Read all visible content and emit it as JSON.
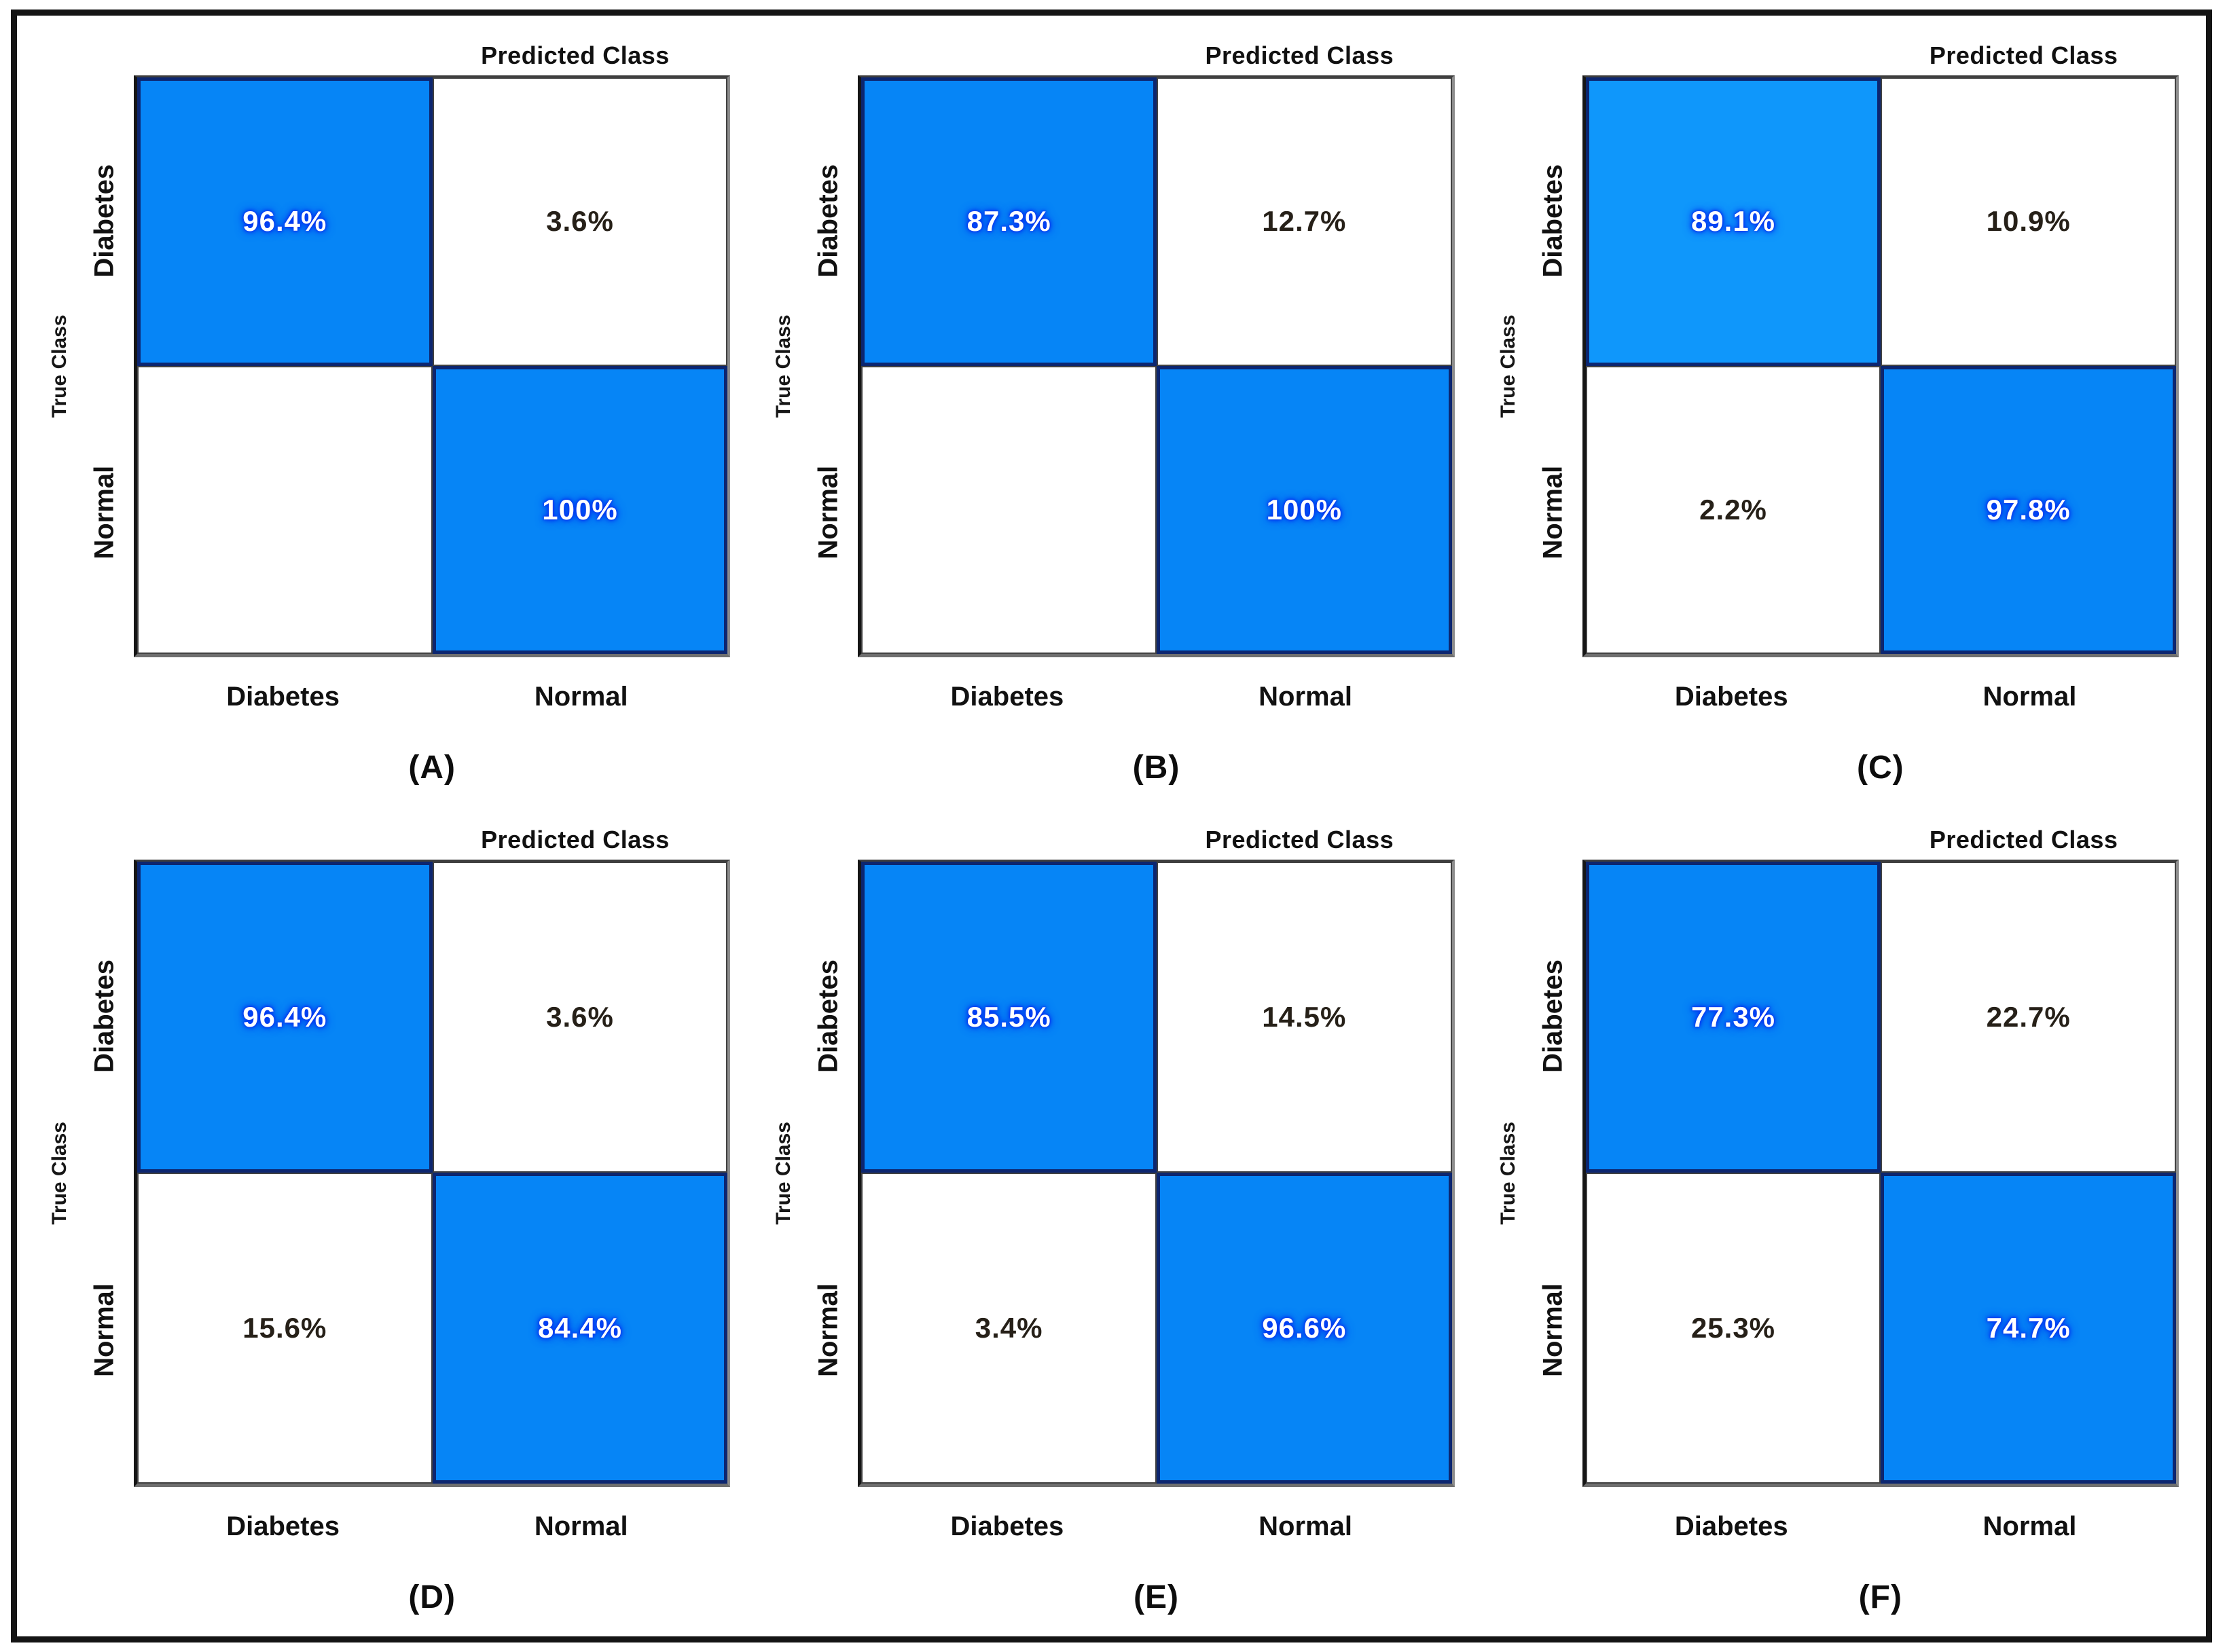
{
  "figure": {
    "x_axis_title": "Predicted Class",
    "y_axis_title": "True Class",
    "row_labels": [
      "Diabetes",
      "Normal"
    ],
    "col_labels": [
      "Diabetes",
      "Normal"
    ],
    "colors": {
      "filled_blue": "#0685f6",
      "filled_blue_light": "#0f97fb",
      "filled_cell_border": "#0c2670",
      "value_glow": "#0033f0",
      "value_on_blue": "#ffffff",
      "off_diagonal_text": "#262018",
      "frame_border": "#141414"
    },
    "panels": [
      {
        "caption": "(A)",
        "cells": [
          {
            "text": "96.4%",
            "state": "filled"
          },
          {
            "text": "3.6%",
            "state": "empty"
          },
          {
            "text": "",
            "state": "empty"
          },
          {
            "text": "100%",
            "state": "filled"
          }
        ]
      },
      {
        "caption": "(B)",
        "cells": [
          {
            "text": "87.3%",
            "state": "filled"
          },
          {
            "text": "12.7%",
            "state": "empty"
          },
          {
            "text": "",
            "state": "empty"
          },
          {
            "text": "100%",
            "state": "filled"
          }
        ]
      },
      {
        "caption": "(C)",
        "cells": [
          {
            "text": "89.1%",
            "state": "filled2"
          },
          {
            "text": "10.9%",
            "state": "empty"
          },
          {
            "text": "2.2%",
            "state": "empty"
          },
          {
            "text": "97.8%",
            "state": "filled"
          }
        ]
      },
      {
        "caption": "(D)",
        "cells": [
          {
            "text": "96.4%",
            "state": "filled"
          },
          {
            "text": "3.6%",
            "state": "empty"
          },
          {
            "text": "15.6%",
            "state": "empty"
          },
          {
            "text": "84.4%",
            "state": "filled"
          }
        ]
      },
      {
        "caption": "(E)",
        "cells": [
          {
            "text": "85.5%",
            "state": "filled"
          },
          {
            "text": "14.5%",
            "state": "empty"
          },
          {
            "text": "3.4%",
            "state": "empty"
          },
          {
            "text": "96.6%",
            "state": "filled"
          }
        ]
      },
      {
        "caption": "(F)",
        "cells": [
          {
            "text": "77.3%",
            "state": "filled"
          },
          {
            "text": "22.7%",
            "state": "empty"
          },
          {
            "text": "25.3%",
            "state": "empty"
          },
          {
            "text": "74.7%",
            "state": "filled"
          }
        ]
      }
    ]
  },
  "chart_data": [
    {
      "type": "heatmap",
      "panel": "(A)",
      "xlabel": "Predicted Class",
      "ylabel": "True Class",
      "x_categories": [
        "Diabetes",
        "Normal"
      ],
      "y_categories": [
        "Diabetes",
        "Normal"
      ],
      "values_percent": [
        [
          96.4,
          3.6
        ],
        [
          null,
          100
        ]
      ],
      "highlighted_cells": [
        "Diabetes-Diabetes",
        "Normal-Normal"
      ],
      "legend": "none",
      "grid": "off"
    },
    {
      "type": "heatmap",
      "panel": "(B)",
      "xlabel": "Predicted Class",
      "ylabel": "True Class",
      "x_categories": [
        "Diabetes",
        "Normal"
      ],
      "y_categories": [
        "Diabetes",
        "Normal"
      ],
      "values_percent": [
        [
          87.3,
          12.7
        ],
        [
          null,
          100
        ]
      ],
      "highlighted_cells": [
        "Diabetes-Diabetes",
        "Normal-Normal"
      ],
      "legend": "none",
      "grid": "off"
    },
    {
      "type": "heatmap",
      "panel": "(C)",
      "xlabel": "Predicted Class",
      "ylabel": "True Class",
      "x_categories": [
        "Diabetes",
        "Normal"
      ],
      "y_categories": [
        "Diabetes",
        "Normal"
      ],
      "values_percent": [
        [
          89.1,
          10.9
        ],
        [
          2.2,
          97.8
        ]
      ],
      "highlighted_cells": [
        "Diabetes-Diabetes",
        "Normal-Normal"
      ],
      "legend": "none",
      "grid": "off"
    },
    {
      "type": "heatmap",
      "panel": "(D)",
      "xlabel": "Predicted Class",
      "ylabel": "True Class",
      "x_categories": [
        "Diabetes",
        "Normal"
      ],
      "y_categories": [
        "Diabetes",
        "Normal"
      ],
      "values_percent": [
        [
          96.4,
          3.6
        ],
        [
          15.6,
          84.4
        ]
      ],
      "highlighted_cells": [
        "Diabetes-Diabetes",
        "Normal-Normal"
      ],
      "legend": "none",
      "grid": "off"
    },
    {
      "type": "heatmap",
      "panel": "(E)",
      "xlabel": "Predicted Class",
      "ylabel": "True Class",
      "x_categories": [
        "Diabetes",
        "Normal"
      ],
      "y_categories": [
        "Diabetes",
        "Normal"
      ],
      "values_percent": [
        [
          85.5,
          14.5
        ],
        [
          3.4,
          96.6
        ]
      ],
      "highlighted_cells": [
        "Diabetes-Diabetes",
        "Normal-Normal"
      ],
      "legend": "none",
      "grid": "off"
    },
    {
      "type": "heatmap",
      "panel": "(F)",
      "xlabel": "Predicted Class",
      "ylabel": "True Class",
      "x_categories": [
        "Diabetes",
        "Normal"
      ],
      "y_categories": [
        "Diabetes",
        "Normal"
      ],
      "values_percent": [
        [
          77.3,
          22.7
        ],
        [
          25.3,
          74.7
        ]
      ],
      "highlighted_cells": [
        "Diabetes-Diabetes",
        "Normal-Normal"
      ],
      "legend": "none",
      "grid": "off"
    }
  ]
}
